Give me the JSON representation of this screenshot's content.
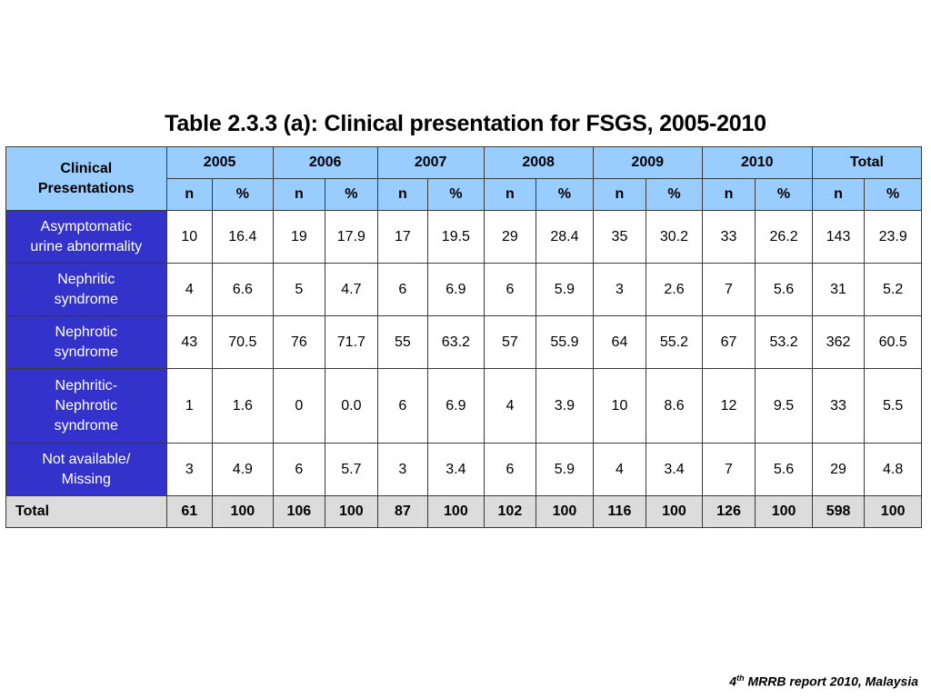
{
  "title": "Table 2.3.3 (a): Clinical presentation for FSGS, 2005-2010",
  "table": {
    "corner_label": [
      "Clinical",
      "Presentations"
    ],
    "years": [
      "2005",
      "2006",
      "2007",
      "2008",
      "2009",
      "2010",
      "Total"
    ],
    "sub_headers": [
      "n",
      "%"
    ],
    "rows": [
      {
        "label": [
          "Asymptomatic",
          "urine abnormality"
        ],
        "values": [
          "10",
          "16.4",
          "19",
          "17.9",
          "17",
          "19.5",
          "29",
          "28.4",
          "35",
          "30.2",
          "33",
          "26.2",
          "143",
          "23.9"
        ]
      },
      {
        "label": [
          "Nephritic",
          "syndrome"
        ],
        "values": [
          "4",
          "6.6",
          "5",
          "4.7",
          "6",
          "6.9",
          "6",
          "5.9",
          "3",
          "2.6",
          "7",
          "5.6",
          "31",
          "5.2"
        ]
      },
      {
        "label": [
          "Nephrotic",
          "syndrome"
        ],
        "values": [
          "43",
          "70.5",
          "76",
          "71.7",
          "55",
          "63.2",
          "57",
          "55.9",
          "64",
          "55.2",
          "67",
          "53.2",
          "362",
          "60.5"
        ]
      },
      {
        "label": [
          "Nephritic-",
          "Nephrotic",
          "syndrome"
        ],
        "values": [
          "1",
          "1.6",
          "0",
          "0.0",
          "6",
          "6.9",
          "4",
          "3.9",
          "10",
          "8.6",
          "12",
          "9.5",
          "33",
          "5.5"
        ]
      },
      {
        "label": [
          "Not available/",
          "Missing"
        ],
        "values": [
          "3",
          "4.9",
          "6",
          "5.7",
          "3",
          "3.4",
          "6",
          "5.9",
          "4",
          "3.4",
          "7",
          "5.6",
          "29",
          "4.8"
        ]
      }
    ],
    "total_row": {
      "label": "Total",
      "values": [
        "61",
        "100",
        "106",
        "100",
        "87",
        "100",
        "102",
        "100",
        "116",
        "100",
        "126",
        "100",
        "598",
        "100"
      ]
    }
  },
  "footer": {
    "prefix": "4",
    "superscript": "th",
    "text": " MRRB report 2010, Malaysia"
  },
  "colors": {
    "header_bg": "#99ccff",
    "row_label_bg": "#3333cc",
    "total_bg": "#dcdcdc"
  }
}
